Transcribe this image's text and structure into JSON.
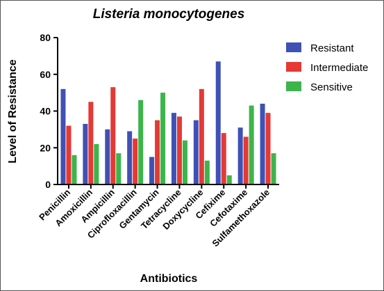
{
  "chart_data": {
    "type": "bar",
    "title": "Listeria monocytogenes",
    "xlabel": "Antibiotics",
    "ylabel": "Level of Resistance",
    "ylim": [
      0,
      80
    ],
    "yticks": [
      0,
      20,
      40,
      60,
      80
    ],
    "grid": false,
    "legend_position": "top-right",
    "categories": [
      "Penicillin",
      "Amoxicillin",
      "Ampicillin",
      "Ciprofloxacillin",
      "Gentamycin",
      "Tetracycline",
      "Doxycycline",
      "Cefixime",
      "Cefotaxime",
      "Sulfamethoxazole"
    ],
    "series": [
      {
        "name": "Resistant",
        "color": "#3f51b5",
        "values": [
          52,
          33,
          30,
          29,
          15,
          39,
          35,
          67,
          31,
          44
        ]
      },
      {
        "name": "Intermediate",
        "color": "#e53935",
        "values": [
          32,
          45,
          53,
          25,
          35,
          37,
          52,
          28,
          26,
          39
        ]
      },
      {
        "name": "Sensitive",
        "color": "#3cb54a",
        "values": [
          16,
          22,
          17,
          46,
          50,
          24,
          13,
          5,
          43,
          17
        ]
      }
    ]
  }
}
